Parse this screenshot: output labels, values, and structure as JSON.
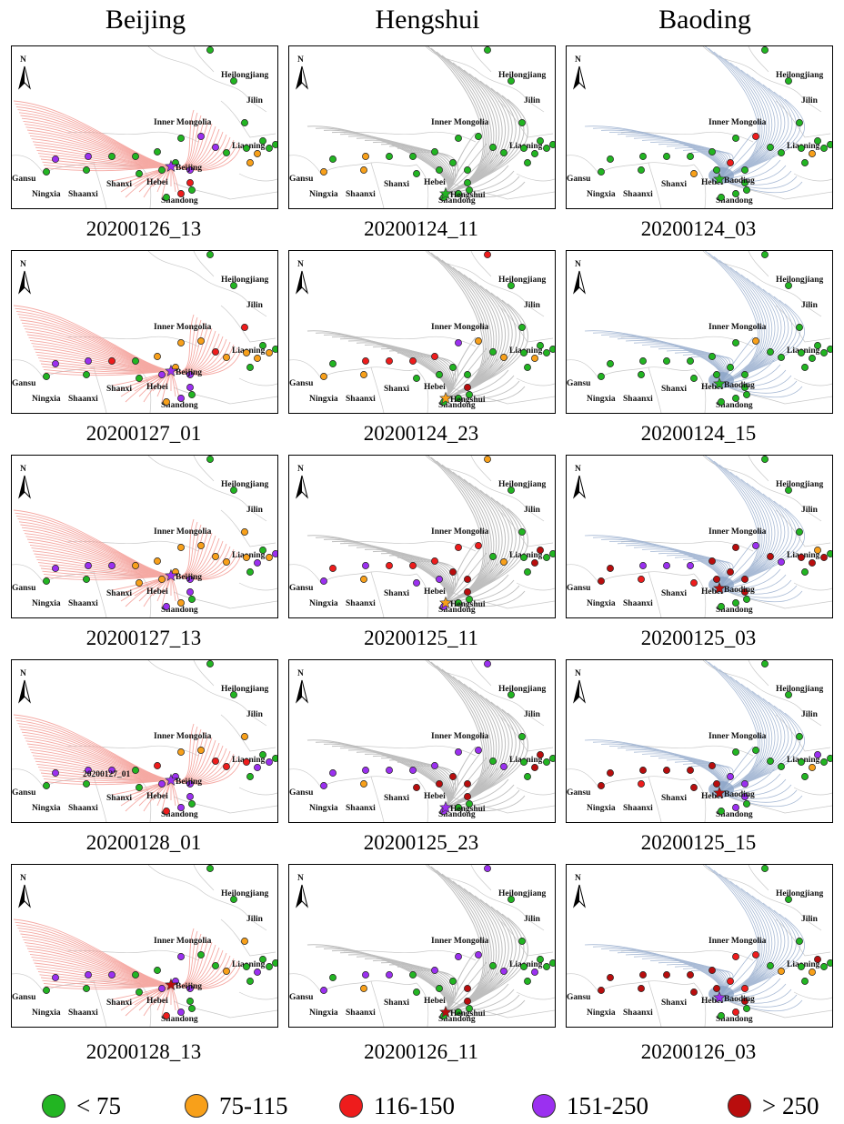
{
  "columns": [
    "Beijing",
    "Hengshui",
    "Baoding"
  ],
  "map_labels": {
    "north": "N",
    "heilongjiang": "Heilongjiang",
    "jilin": "Jilin",
    "inner_mongolia": "Inner Mongolia",
    "liaoning": "Liaoning",
    "beijing": "Beijing",
    "gansu": "Gansu",
    "ningxia": "Ningxia",
    "shaanxi": "Shaanxi",
    "shanxi": "Shanxi",
    "hebei": "Hebei",
    "shandong": "Shandong",
    "hengshui": "Hengshui",
    "baoding": "Baoding"
  },
  "stray_label": "20200127_01",
  "trajectory_colors": {
    "Beijing": "#f4a09a",
    "Hengshui": "#b8b8b8",
    "Baoding": "#9fb3d1"
  },
  "legend": [
    {
      "label": "< 75",
      "color": "#22b522"
    },
    {
      "label": "75-115",
      "color": "#f8a01a"
    },
    {
      "label": "116-150",
      "color": "#ee1c1c"
    },
    {
      "label": "151-250",
      "color": "#9b30f0"
    },
    {
      "label": "> 250",
      "color": "#b90d0d"
    }
  ],
  "panels": [
    {
      "city": "Beijing",
      "time": "20200126_13",
      "star": "#9b30f0",
      "stations": [
        "g",
        "g",
        "g",
        "g",
        "p",
        "g",
        "g",
        "g",
        "g",
        "p",
        "p",
        "g",
        "g",
        "g",
        "g",
        "g",
        "p",
        "r",
        "r",
        "g",
        "g",
        "p",
        "g",
        "o",
        "g",
        "g",
        "g",
        "o"
      ]
    },
    {
      "city": "Hengshui",
      "time": "20200124_11",
      "star": "#22b522",
      "stations": [
        "g",
        "g",
        "g",
        "g",
        "g",
        "g",
        "g",
        "g",
        "g",
        "o",
        "g",
        "o",
        "o",
        "g",
        "g",
        "g",
        "g",
        "g",
        "g",
        "g",
        "g",
        "g",
        "g",
        "g",
        "g",
        "g",
        "g",
        "g"
      ]
    },
    {
      "city": "Baoding",
      "time": "20200124_03",
      "star": "#22b522",
      "stations": [
        "g",
        "g",
        "g",
        "g",
        "r",
        "g",
        "g",
        "g",
        "g",
        "g",
        "g",
        "g",
        "g",
        "o",
        "g",
        "r",
        "g",
        "g",
        "g",
        "g",
        "g",
        "g",
        "g",
        "o",
        "g",
        "g",
        "g",
        "g"
      ]
    },
    {
      "city": "Beijing",
      "time": "20200127_01",
      "star": "#9b30f0",
      "stations": [
        "g",
        "g",
        "r",
        "o",
        "o",
        "o",
        "o",
        "g",
        "r",
        "p",
        "p",
        "g",
        "g",
        "g",
        "p",
        "o",
        "p",
        "p",
        "p",
        "o",
        "g",
        "r",
        "o",
        "o",
        "g",
        "o",
        "g",
        "g"
      ]
    },
    {
      "city": "Hengshui",
      "time": "20200124_23",
      "star": "#f8a01a",
      "stations": [
        "r",
        "g",
        "g",
        "o",
        "o",
        "p",
        "r",
        "r",
        "r",
        "r",
        "g",
        "o",
        "o",
        "g",
        "g",
        "g",
        "g",
        "br",
        "g",
        "g",
        "g",
        "g",
        "g",
        "o",
        "g",
        "g",
        "g",
        "g"
      ]
    },
    {
      "city": "Baoding",
      "time": "20200124_15",
      "star": "#22b522",
      "stations": [
        "g",
        "g",
        "g",
        "g",
        "o",
        "g",
        "g",
        "g",
        "g",
        "g",
        "g",
        "g",
        "g",
        "g",
        "g",
        "g",
        "g",
        "g",
        "g",
        "g",
        "g",
        "g",
        "g",
        "g",
        "g",
        "g",
        "g",
        "g"
      ]
    },
    {
      "city": "Beijing",
      "time": "20200127_13",
      "star": "#9b30f0",
      "stations": [
        "g",
        "g",
        "o",
        "o",
        "o",
        "o",
        "o",
        "o",
        "p",
        "p",
        "p",
        "g",
        "g",
        "o",
        "o",
        "o",
        "p",
        "p",
        "o",
        "p",
        "g",
        "o",
        "o",
        "p",
        "g",
        "o",
        "p",
        "g"
      ]
    },
    {
      "city": "Hengshui",
      "time": "20200125_11",
      "star": "#f8a01a",
      "stations": [
        "o",
        "g",
        "g",
        "o",
        "r",
        "r",
        "r",
        "r",
        "r",
        "p",
        "r",
        "p",
        "o",
        "p",
        "p",
        "br",
        "br",
        "br",
        "g",
        "p",
        "g",
        "g",
        "g",
        "br",
        "br",
        "g",
        "g",
        "g"
      ]
    },
    {
      "city": "Baoding",
      "time": "20200125_03",
      "star": "#b90d0d",
      "stations": [
        "g",
        "g",
        "g",
        "p",
        "p",
        "br",
        "br",
        "p",
        "p",
        "p",
        "br",
        "br",
        "r",
        "r",
        "br",
        "br",
        "br",
        "br",
        "g",
        "g",
        "g",
        "br",
        "br",
        "br",
        "o",
        "br",
        "g",
        "g"
      ]
    },
    {
      "city": "Beijing",
      "time": "20200128_01",
      "star": "#9b30f0",
      "stations": [
        "g",
        "g",
        "o",
        "r",
        "o",
        "o",
        "r",
        "g",
        "p",
        "p",
        "p",
        "g",
        "g",
        "g",
        "p",
        "p",
        "p",
        "p",
        "p",
        "r",
        "g",
        "r",
        "r",
        "p",
        "g",
        "p",
        "g",
        "g"
      ]
    },
    {
      "city": "Hengshui",
      "time": "20200125_23",
      "star": "#9b30f0",
      "stations": [
        "p",
        "g",
        "g",
        "p",
        "p",
        "p",
        "p",
        "p",
        "p",
        "p",
        "p",
        "p",
        "o",
        "br",
        "br",
        "br",
        "br",
        "br",
        "g",
        "p",
        "g",
        "g",
        "g",
        "br",
        "br",
        "g",
        "g",
        "g"
      ]
    },
    {
      "city": "Baoding",
      "time": "20200125_15",
      "star": "#b90d0d",
      "stations": [
        "g",
        "g",
        "g",
        "g",
        "g",
        "g",
        "br",
        "br",
        "br",
        "br",
        "br",
        "br",
        "r",
        "br",
        "br",
        "p",
        "p",
        "p",
        "p",
        "g",
        "g",
        "g",
        "g",
        "o",
        "p",
        "g",
        "g",
        "g"
      ]
    },
    {
      "city": "Beijing",
      "time": "20200128_13",
      "star": "#b90d0d",
      "stations": [
        "g",
        "g",
        "o",
        "o",
        "g",
        "p",
        "g",
        "g",
        "p",
        "p",
        "p",
        "g",
        "g",
        "g",
        "p",
        "p",
        "p",
        "g",
        "p",
        "r",
        "g",
        "g",
        "g",
        "p",
        "g",
        "g",
        "g",
        "g"
      ]
    },
    {
      "city": "Hengshui",
      "time": "20200126_11",
      "star": "#b90d0d",
      "stations": [
        "p",
        "g",
        "g",
        "p",
        "p",
        "p",
        "p",
        "g",
        "p",
        "p",
        "g",
        "p",
        "o",
        "g",
        "g",
        "g",
        "br",
        "br",
        "g",
        "g",
        "g",
        "g",
        "g",
        "p",
        "g",
        "g",
        "g",
        "g"
      ]
    },
    {
      "city": "Baoding",
      "time": "20200126_03",
      "star": "#9b30f0",
      "stations": [
        "g",
        "g",
        "g",
        "o",
        "r",
        "r",
        "br",
        "br",
        "br",
        "br",
        "br",
        "br",
        "br",
        "br",
        "br",
        "r",
        "r",
        "br",
        "r",
        "g",
        "g",
        "g",
        "g",
        "o",
        "br",
        "g",
        "g",
        "g"
      ]
    }
  ]
}
